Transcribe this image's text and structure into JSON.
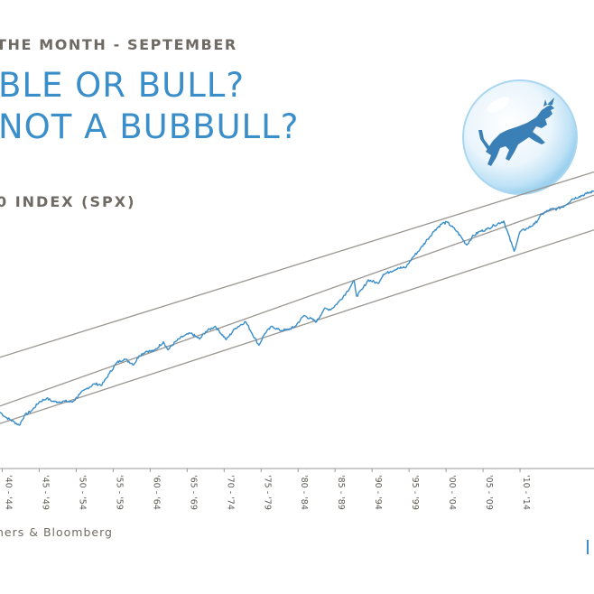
{
  "header": {
    "kicker": "THE MONTH - SEPTEMBER",
    "title_line1": "BLE OR BULL?",
    "title_line2": "NOT A BUBBULL?",
    "subtitle": "0 INDEX (SPX)"
  },
  "footer": {
    "source": "ners & Bloomberg"
  },
  "logo": {
    "icon": "bull-in-bubble-icon"
  },
  "colors": {
    "accent": "#3a8ec9",
    "text": "#6f6a64",
    "channel": "#9a9691",
    "axis": "#9a9a9a"
  },
  "chart_data": {
    "type": "line",
    "title": "",
    "xlabel": "",
    "ylabel": "",
    "y_scale": "log",
    "grid": false,
    "legend": "none",
    "xlim": [
      1939.7,
      2020
    ],
    "ylim_log10": [
      0.45,
      3.8
    ],
    "x_tick_labels": [
      "'40 - '44",
      "'45 - '49",
      "'50 - '54",
      "'55 - '59",
      "'60 - '64",
      "'65 - '69",
      "'70 - '74",
      "'75 - '79",
      "'80 - '84",
      "'85 - '89",
      "'90 - '94",
      "'95 - '99",
      "'00 - '04",
      "'05 - '09",
      "'10 - '14"
    ],
    "x_tick_positions": [
      1940,
      1945,
      1950,
      1955,
      1960,
      1965,
      1970,
      1975,
      1980,
      1985,
      1990,
      1995,
      2000,
      2005,
      2010
    ],
    "series": [
      {
        "name": "",
        "x": [
          1939.7,
          1940.5,
          1941.5,
          1942.3,
          1943.0,
          1944.0,
          1945.0,
          1946.0,
          1946.8,
          1947.5,
          1948.5,
          1949.5,
          1950.5,
          1951.5,
          1952.5,
          1953.5,
          1954.5,
          1955.5,
          1956.5,
          1957.8,
          1958.5,
          1959.5,
          1960.5,
          1961.8,
          1962.4,
          1963.5,
          1964.5,
          1965.5,
          1966.7,
          1967.5,
          1968.8,
          1970.3,
          1971.5,
          1972.9,
          1974.7,
          1975.5,
          1976.5,
          1977.5,
          1978.5,
          1979.5,
          1980.8,
          1982.5,
          1983.5,
          1984.5,
          1985.5,
          1986.5,
          1987.6,
          1987.9,
          1988.7,
          1989.5,
          1990.8,
          1991.5,
          1992.5,
          1993.5,
          1994.5,
          1995.5,
          1996.5,
          1997.5,
          1998.5,
          1999.5,
          2000.2,
          2001.5,
          2002.8,
          2003.5,
          2004.5,
          2005.5,
          2006.5,
          2007.8,
          2009.2,
          2010.0,
          2011.0,
          2012.0,
          2013.0,
          2014.0,
          2015.0,
          2016.0,
          2017.0,
          2018.0,
          2019.0,
          2020.0
        ],
        "values": [
          12.0,
          10.5,
          9.5,
          8.6,
          11.0,
          12.5,
          15.5,
          17.0,
          15.8,
          15.5,
          15.8,
          15.5,
          19.0,
          22.0,
          24.5,
          24.0,
          32.0,
          42.0,
          46.0,
          40.0,
          50.0,
          56.0,
          56.0,
          71.0,
          58.0,
          72.0,
          82.0,
          88.0,
          76.0,
          92.0,
          105.0,
          75.0,
          100.0,
          118.0,
          65.0,
          88.0,
          105.0,
          95.0,
          96.0,
          103.0,
          138.0,
          118.0,
          162.0,
          162.0,
          195.0,
          245.0,
          330.0,
          225.0,
          270.0,
          340.0,
          310.0,
          390.0,
          420.0,
          460.0,
          460.0,
          600.0,
          740.0,
          950.0,
          1200.0,
          1420.0,
          1450.0,
          1150.0,
          820.0,
          1000.0,
          1150.0,
          1220.0,
          1350.0,
          1500.0,
          700.0,
          1150.0,
          1250.0,
          1400.0,
          1800.0,
          2000.0,
          2050.0,
          2200.0,
          2600.0,
          2800.0,
          3000.0,
          3200.0
        ]
      }
    ],
    "channel": [
      {
        "name": "",
        "x": [
          1939.7,
          2020
        ],
        "values": [
          48,
          5200
        ]
      },
      {
        "name": "",
        "x": [
          1939.7,
          2020
        ],
        "values": [
          14,
          2900
        ]
      },
      {
        "name": "",
        "x": [
          1939.7,
          2020
        ],
        "values": [
          9,
          1200
        ]
      }
    ]
  }
}
